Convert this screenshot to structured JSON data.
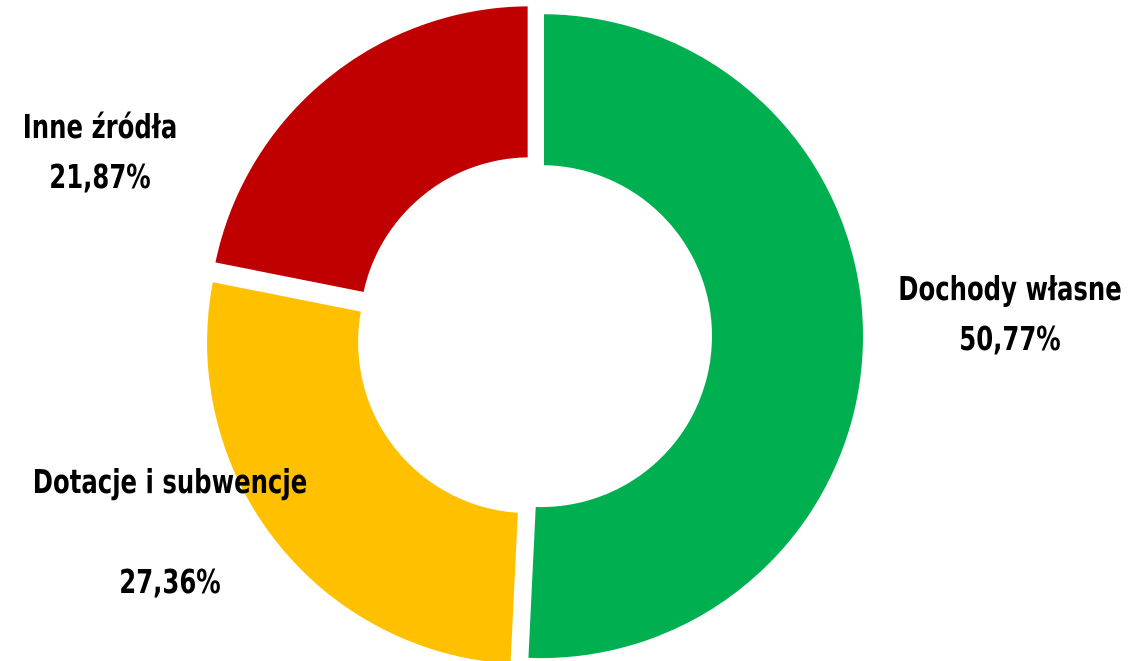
{
  "chart_data": {
    "type": "pie",
    "donut": true,
    "start_angle_deg": 0,
    "direction": "clockwise",
    "slices": [
      {
        "label": "Dochody własne",
        "value": 50.77,
        "display": "50,77%",
        "color": "#00B050"
      },
      {
        "label": "Dotacje i subwencje",
        "value": 27.36,
        "display": "27,36%",
        "color": "#FFC000"
      },
      {
        "label": "Inne źródła",
        "value": 21.87,
        "display": "21,87%",
        "color": "#C00000"
      }
    ],
    "legend": "none",
    "data_labels": "outside"
  }
}
